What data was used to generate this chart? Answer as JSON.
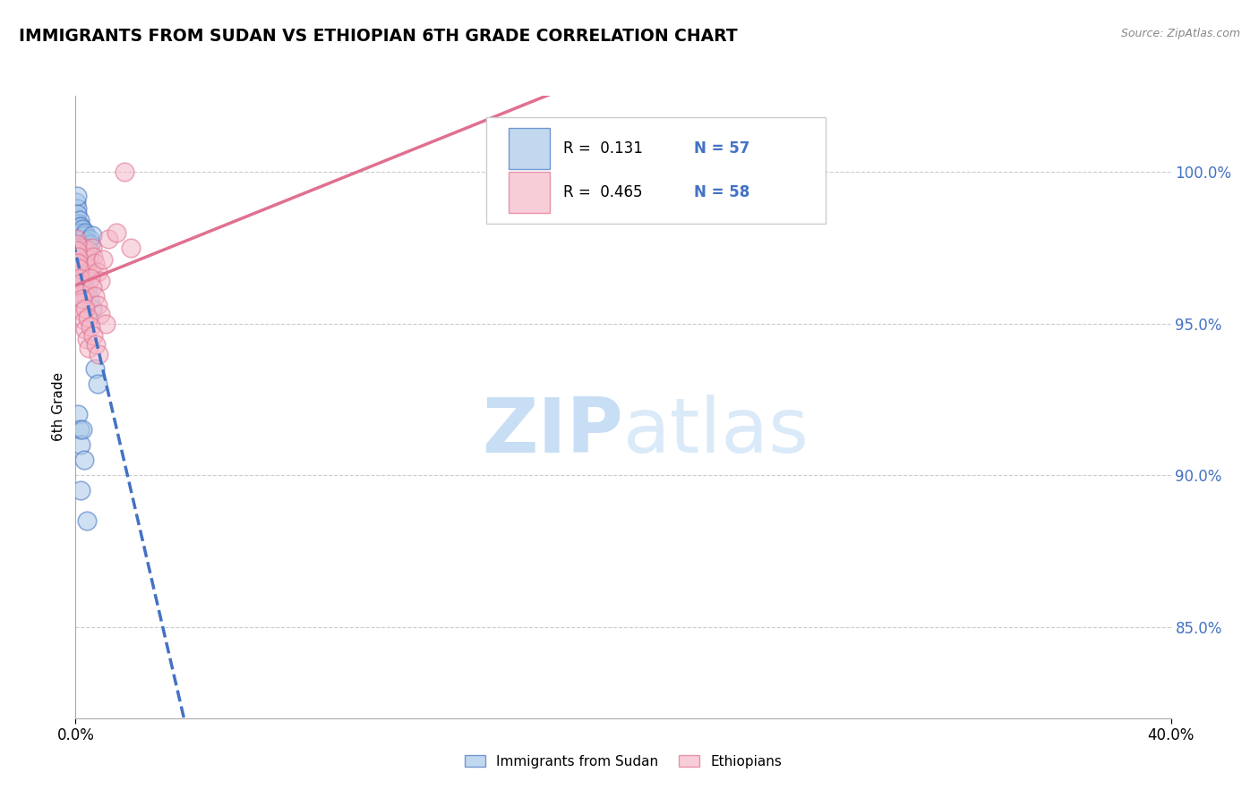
{
  "title": "IMMIGRANTS FROM SUDAN VS ETHIOPIAN 6TH GRADE CORRELATION CHART",
  "source_text": "Source: ZipAtlas.com",
  "ylabel": "6th Grade",
  "xlim": [
    0.0,
    40.0
  ],
  "ylim": [
    82.0,
    102.5
  ],
  "yticks": [
    85.0,
    90.0,
    95.0,
    100.0
  ],
  "xticks": [
    0.0,
    40.0
  ],
  "xtick_labels": [
    "0.0%",
    "40.0%"
  ],
  "blue_color": "#a8c8e8",
  "pink_color": "#f4b8c8",
  "blue_edge": "#4472c4",
  "pink_edge": "#e07090",
  "trend_blue_color": "#4472c4",
  "trend_pink_color": "#e07090",
  "watermark": "ZIPatlas",
  "watermark_color": "#daeaf8",
  "legend_label1": "Immigrants from Sudan",
  "legend_label2": "Ethiopians",
  "legend_r1": "R =  0.131",
  "legend_n1": "N = 57",
  "legend_r2": "R =  0.465",
  "legend_n2": "N = 58",
  "sudan_x": [
    0.02,
    0.03,
    0.04,
    0.05,
    0.06,
    0.07,
    0.08,
    0.09,
    0.1,
    0.11,
    0.12,
    0.13,
    0.14,
    0.15,
    0.16,
    0.17,
    0.18,
    0.19,
    0.2,
    0.22,
    0.24,
    0.26,
    0.28,
    0.3,
    0.35,
    0.4,
    0.45,
    0.5,
    0.55,
    0.6,
    0.03,
    0.04,
    0.05,
    0.06,
    0.07,
    0.08,
    0.09,
    0.1,
    0.12,
    0.14,
    0.16,
    0.18,
    0.2,
    0.25,
    0.3,
    0.4,
    0.5,
    0.6,
    0.7,
    0.8,
    0.1,
    0.15,
    0.2,
    0.25,
    0.3,
    0.2,
    0.4
  ],
  "sudan_y": [
    98.5,
    99.0,
    98.8,
    99.2,
    98.6,
    98.3,
    97.8,
    98.0,
    97.5,
    98.2,
    97.9,
    98.1,
    97.6,
    98.4,
    97.7,
    98.2,
    97.8,
    97.5,
    98.0,
    97.6,
    97.8,
    98.1,
    97.4,
    97.9,
    98.0,
    97.7,
    97.5,
    97.8,
    97.6,
    97.9,
    97.2,
    97.0,
    96.8,
    96.5,
    96.3,
    97.0,
    97.2,
    96.8,
    96.5,
    96.2,
    96.0,
    97.3,
    97.1,
    96.7,
    96.4,
    96.1,
    95.8,
    95.5,
    93.5,
    93.0,
    92.0,
    91.5,
    91.0,
    91.5,
    90.5,
    89.5,
    88.5
  ],
  "ethiopian_x": [
    0.03,
    0.05,
    0.07,
    0.09,
    0.11,
    0.13,
    0.15,
    0.17,
    0.19,
    0.21,
    0.23,
    0.25,
    0.28,
    0.3,
    0.33,
    0.36,
    0.4,
    0.44,
    0.48,
    0.52,
    0.56,
    0.6,
    0.65,
    0.7,
    0.8,
    0.9,
    1.0,
    1.2,
    1.5,
    2.0,
    0.04,
    0.06,
    0.08,
    0.1,
    0.12,
    0.14,
    0.16,
    0.18,
    0.22,
    0.26,
    0.3,
    0.35,
    0.42,
    0.48,
    0.55,
    0.62,
    0.7,
    0.8,
    0.9,
    1.1,
    0.25,
    0.35,
    0.45,
    0.55,
    0.65,
    0.75,
    0.85,
    1.8
  ],
  "ethiopian_y": [
    97.8,
    97.5,
    97.2,
    97.0,
    96.8,
    96.5,
    96.2,
    96.0,
    97.3,
    97.1,
    96.8,
    96.5,
    96.2,
    96.0,
    97.5,
    97.2,
    97.0,
    96.7,
    97.4,
    97.1,
    96.8,
    97.5,
    97.2,
    97.0,
    96.7,
    96.4,
    97.1,
    97.8,
    98.0,
    97.5,
    97.6,
    97.4,
    97.2,
    97.0,
    96.8,
    96.5,
    96.3,
    96.0,
    95.7,
    95.4,
    95.1,
    94.8,
    94.5,
    94.2,
    96.5,
    96.2,
    95.9,
    95.6,
    95.3,
    95.0,
    95.8,
    95.5,
    95.2,
    94.9,
    94.6,
    94.3,
    94.0,
    100.0
  ]
}
